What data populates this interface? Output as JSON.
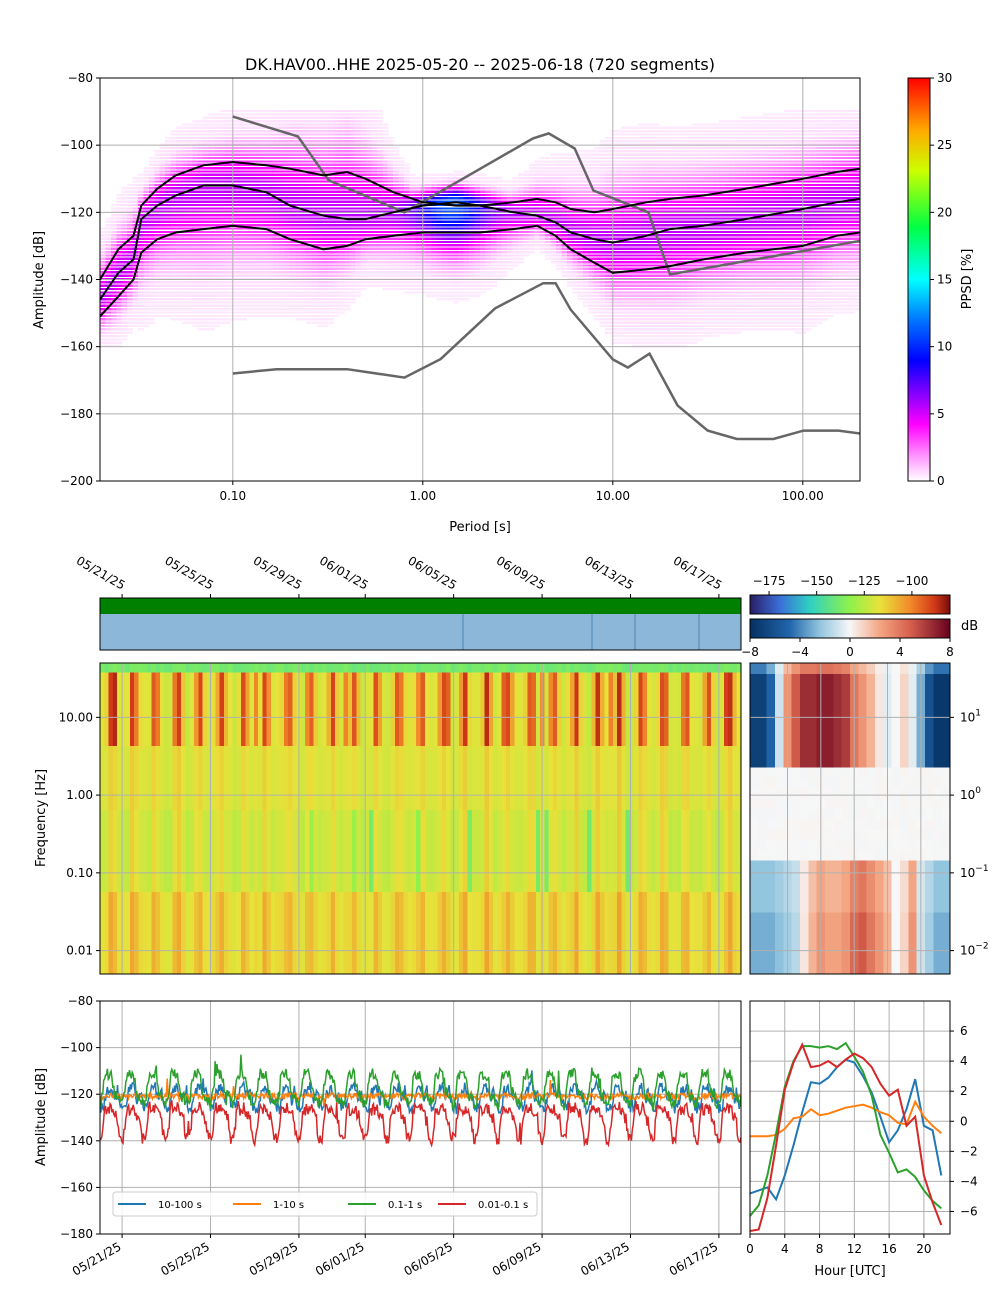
{
  "chart_data": [
    {
      "type": "heatmap",
      "panel": "ppsd",
      "title": "DK.HAV00..HHE   2025-05-20 -- 2025-06-18  (720 segments)",
      "xlabel": "Period [s]",
      "ylabel": "Amplitude [dB]",
      "xscale": "log",
      "xlim": [
        0.02,
        200
      ],
      "ylim": [
        -200,
        -80
      ],
      "x_ticks": [
        0.1,
        1,
        10,
        100
      ],
      "x_tick_labels": [
        "0.10",
        "1.00",
        "10.00",
        "100.00"
      ],
      "y_ticks": [
        -200,
        -180,
        -160,
        -140,
        -120,
        -100,
        -80
      ],
      "grid": true,
      "colorbar": {
        "label": "PPSD [%]",
        "range": [
          0,
          30
        ],
        "ticks": [
          0,
          5,
          10,
          15,
          20,
          25,
          30
        ]
      },
      "percentile_curves": [
        {
          "name": "upper",
          "period": [
            0.02,
            0.025,
            0.03,
            0.033,
            0.04,
            0.05,
            0.07,
            0.1,
            0.15,
            0.2,
            0.3,
            0.4,
            0.5,
            0.7,
            1,
            1.5,
            2,
            3,
            4,
            5,
            6,
            8,
            10,
            15,
            20,
            30,
            50,
            100,
            150,
            200
          ],
          "db": [
            -140,
            -131,
            -127,
            -118,
            -113,
            -109,
            -106,
            -105,
            -106,
            -107,
            -109,
            -108,
            -110,
            -114,
            -117,
            -118,
            -118,
            -117,
            -116,
            -117,
            -119,
            -120,
            -119,
            -117,
            -116,
            -115,
            -113,
            -110,
            -108,
            -107
          ]
        },
        {
          "name": "median",
          "period": [
            0.02,
            0.025,
            0.03,
            0.033,
            0.04,
            0.05,
            0.07,
            0.1,
            0.15,
            0.2,
            0.3,
            0.4,
            0.5,
            0.7,
            1,
            1.5,
            2,
            3,
            4,
            5,
            6,
            8,
            10,
            15,
            20,
            30,
            50,
            100,
            150,
            200
          ],
          "db": [
            -146,
            -138,
            -134,
            -122,
            -118,
            -115,
            -112,
            -112,
            -114,
            -118,
            -121,
            -122,
            -122,
            -120,
            -118,
            -117,
            -118,
            -120,
            -121,
            -123,
            -126,
            -128,
            -129,
            -127,
            -125,
            -124,
            -122,
            -119,
            -117,
            -116
          ]
        },
        {
          "name": "lower",
          "period": [
            0.02,
            0.025,
            0.03,
            0.033,
            0.04,
            0.05,
            0.07,
            0.1,
            0.15,
            0.2,
            0.3,
            0.4,
            0.5,
            0.7,
            1,
            1.5,
            2,
            3,
            4,
            5,
            6,
            8,
            10,
            15,
            20,
            30,
            50,
            100,
            150,
            200
          ],
          "db": [
            -151,
            -145,
            -140,
            -132,
            -128,
            -126,
            -125,
            -124,
            -125,
            -128,
            -131,
            -130,
            -128,
            -127,
            -126,
            -126,
            -126,
            -125,
            -124,
            -127,
            -131,
            -135,
            -138,
            -137,
            -136,
            -134,
            -132,
            -130,
            -127,
            -126
          ]
        }
      ],
      "noise_models": [
        {
          "name": "NHNM",
          "period": [
            0.1,
            0.22,
            0.32,
            0.8,
            3.8,
            4.6,
            6.3,
            7.9,
            15.4,
            20,
            354.8
          ],
          "db": [
            -91.5,
            -97.4,
            -110.5,
            -120,
            -98,
            -96.5,
            -101,
            -113.5,
            -120,
            -138.5,
            -126
          ]
        },
        {
          "name": "NLNM",
          "period": [
            0.1,
            0.17,
            0.4,
            0.8,
            1.24,
            2.4,
            4.3,
            5,
            6,
            10,
            12,
            15.6,
            21.9,
            31.6,
            45,
            70,
            101,
            154,
            328
          ],
          "db": [
            -168,
            -166.7,
            -166.7,
            -169.2,
            -163.7,
            -148.6,
            -141.1,
            -141.1,
            -149,
            -163.8,
            -166.2,
            -162.1,
            -177.5,
            -185,
            -187.5,
            -187.5,
            -185,
            -185,
            -187.5
          ]
        }
      ]
    },
    {
      "type": "heatmap",
      "panel": "spectrogram",
      "ylabel": "Frequency [Hz]",
      "yscale": "log",
      "ylim": [
        0.005,
        50
      ],
      "y_ticks": [
        0.01,
        0.1,
        1,
        10
      ],
      "y_tick_labels": [
        "0.01",
        "0.10",
        "1.00",
        "10.00"
      ],
      "x_tick_labels": [
        "05/21/25",
        "05/25/25",
        "05/29/25",
        "06/01/25",
        "06/05/25",
        "06/09/25",
        "06/13/25",
        "06/17/25"
      ],
      "date_range": [
        "2025-05-20",
        "2025-06-18"
      ],
      "colorbar": {
        "ticks": [
          -175,
          -150,
          -125,
          -100
        ],
        "range": [
          -185,
          -80
        ]
      },
      "data_availability": "continuous"
    },
    {
      "type": "heatmap",
      "panel": "diurnal_anomaly",
      "yscale": "log",
      "y_tick_labels": [
        "10^-2",
        "10^-1",
        "10^0",
        "10^1"
      ],
      "colorbar": {
        "label": "dB",
        "range": [
          -8,
          8
        ],
        "ticks": [
          -8,
          -4,
          0,
          4,
          8
        ]
      }
    },
    {
      "type": "line",
      "panel": "band_timeseries",
      "ylabel": "Amplitude [dB]",
      "ylim": [
        -180,
        -80
      ],
      "y_ticks": [
        -180,
        -160,
        -140,
        -120,
        -100,
        -80
      ],
      "x_tick_labels": [
        "05/21/25",
        "05/25/25",
        "05/29/25",
        "06/01/25",
        "06/05/25",
        "06/09/25",
        "06/13/25",
        "06/17/25"
      ],
      "legend": "lower-left",
      "series": [
        {
          "name": "10-100 s",
          "color": "#1f77b4",
          "mean": -121,
          "diurnal_amplitude": 6
        },
        {
          "name": "1-10 s",
          "color": "#ff7f0e",
          "mean": -121,
          "diurnal_amplitude": 2
        },
        {
          "name": "0.1-1 s",
          "color": "#2ca02c",
          "mean": -117,
          "diurnal_amplitude": 7
        },
        {
          "name": "0.01-0.1 s",
          "color": "#d62728",
          "mean": -131,
          "diurnal_amplitude": 7
        }
      ]
    },
    {
      "type": "line",
      "panel": "diurnal_profile",
      "xlabel": "Hour [UTC]",
      "xlim": [
        0,
        23
      ],
      "ylim": [
        -7.5,
        8
      ],
      "x_ticks": [
        0,
        4,
        8,
        12,
        16,
        20
      ],
      "y_ticks": [
        -6,
        -4,
        -2,
        0,
        2,
        4,
        6
      ],
      "x": [
        0,
        1,
        2,
        3,
        4,
        5,
        6,
        7,
        8,
        9,
        10,
        11,
        12,
        13,
        14,
        15,
        16,
        17,
        18,
        19,
        20,
        21,
        22
      ],
      "series": [
        {
          "name": "10-100 s",
          "color": "#1f77b4",
          "values": [
            -4.8,
            -4.6,
            -4.4,
            -5.2,
            -3.6,
            -1.6,
            0.6,
            2.6,
            2.5,
            2.9,
            3.6,
            4.1,
            3.9,
            3.0,
            1.9,
            0.3,
            -1.4,
            -0.6,
            0.8,
            2.8,
            -0.3,
            -0.6,
            -3.6
          ]
        },
        {
          "name": "1-10 s",
          "color": "#ff7f0e",
          "values": [
            -1.0,
            -1.0,
            -1.0,
            -0.9,
            -0.5,
            0.2,
            0.3,
            0.8,
            0.4,
            0.5,
            0.7,
            0.9,
            1.0,
            1.1,
            0.9,
            0.6,
            0.4,
            -0.1,
            -0.2,
            1.3,
            0.3,
            -0.3,
            -0.8
          ]
        },
        {
          "name": "0.1-1 s",
          "color": "#2ca02c",
          "values": [
            -6.3,
            -5.6,
            -3.6,
            -0.8,
            2.3,
            4.0,
            5.0,
            5.0,
            4.9,
            5.0,
            4.8,
            5.2,
            4.3,
            3.3,
            1.7,
            -0.9,
            -2.1,
            -3.4,
            -3.2,
            -3.7,
            -4.6,
            -5.3,
            -5.8
          ]
        },
        {
          "name": "0.01-0.1 s",
          "color": "#d62728",
          "values": [
            -7.3,
            -7.2,
            -5.1,
            -1.6,
            2.1,
            3.9,
            5.1,
            3.6,
            3.7,
            4.0,
            3.6,
            4.1,
            4.5,
            4.2,
            3.6,
            2.5,
            1.7,
            2.1,
            -0.3,
            0.3,
            -3.6,
            -5.4,
            -6.9
          ]
        }
      ]
    }
  ]
}
